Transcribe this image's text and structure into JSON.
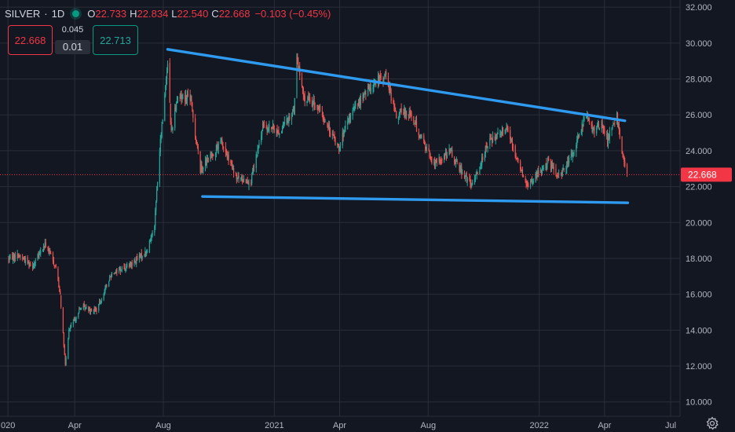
{
  "legend": {
    "symbol": "SILVER",
    "separator": "·",
    "interval": "1D",
    "open_label": "O",
    "open": "22.733",
    "high_label": "H",
    "high": "22.834",
    "low_label": "L",
    "low": "22.540",
    "close_label": "C",
    "close": "22.668",
    "change": "−0.103 (−0.45%)"
  },
  "trade": {
    "sell_price": "22.668",
    "spread_top": "0.045",
    "spread_bottom": "0.01",
    "buy_price": "22.713"
  },
  "price_badge": "22.668",
  "colors": {
    "background": "#131722",
    "grid": "#2a2e39",
    "up": "#26a69a",
    "down": "#ef5350",
    "trendline": "#2f9bf0",
    "badge": "#f23645",
    "axis_text": "#b2b5be"
  },
  "settings_icon": "gear-icon",
  "chart_data": {
    "type": "candlestick",
    "y_axis_labels": [
      "32.000",
      "30.000",
      "28.000",
      "26.000",
      "24.000",
      "22.000",
      "20.000",
      "18.000",
      "16.000",
      "14.000",
      "12.000",
      "10.000"
    ],
    "x_axis_labels": [
      "020",
      "Apr",
      "Aug",
      "2021",
      "Apr",
      "Aug",
      "2022",
      "Apr",
      "Jul"
    ],
    "ylim": [
      9.2,
      32.4
    ],
    "last_price": 22.668,
    "trendlines": [
      {
        "name": "upper",
        "from": {
          "date": "2020-08-07",
          "price": 29.65
        },
        "to": {
          "date": "2022-04-29",
          "price": 25.67
        }
      },
      {
        "name": "lower",
        "from": {
          "date": "2020-09-24",
          "price": 21.45
        },
        "to": {
          "date": "2022-05-03",
          "price": 21.1
        }
      }
    ],
    "anchors": [
      [
        "2020-01-01",
        18.0
      ],
      [
        "2020-01-14",
        18.2
      ],
      [
        "2020-02-03",
        17.6
      ],
      [
        "2020-02-21",
        18.8
      ],
      [
        "2020-03-06",
        17.5
      ],
      [
        "2020-03-12",
        16.0
      ],
      [
        "2020-03-19",
        12.0
      ],
      [
        "2020-03-24",
        14.0
      ],
      [
        "2020-04-10",
        15.3
      ],
      [
        "2020-05-01",
        15.1
      ],
      [
        "2020-05-22",
        17.2
      ],
      [
        "2020-06-15",
        17.6
      ],
      [
        "2020-07-10",
        18.4
      ],
      [
        "2020-07-20",
        20.0
      ],
      [
        "2020-07-27",
        24.0
      ],
      [
        "2020-08-07",
        29.0
      ],
      [
        "2020-08-12",
        25.0
      ],
      [
        "2020-08-20",
        27.0
      ],
      [
        "2020-09-07",
        27.0
      ],
      [
        "2020-09-21",
        23.0
      ],
      [
        "2020-10-02",
        23.5
      ],
      [
        "2020-10-20",
        24.5
      ],
      [
        "2020-11-09",
        22.5
      ],
      [
        "2020-11-30",
        22.3
      ],
      [
        "2020-12-17",
        25.5
      ],
      [
        "2021-01-08",
        25.0
      ],
      [
        "2021-01-28",
        26.3
      ],
      [
        "2021-02-01",
        29.2
      ],
      [
        "2021-02-10",
        27.0
      ],
      [
        "2021-03-01",
        26.5
      ],
      [
        "2021-03-30",
        24.2
      ],
      [
        "2021-04-20",
        26.3
      ],
      [
        "2021-05-18",
        27.8
      ],
      [
        "2021-06-04",
        28.2
      ],
      [
        "2021-06-17",
        26.0
      ],
      [
        "2021-07-06",
        26.2
      ],
      [
        "2021-08-09",
        23.2
      ],
      [
        "2021-08-30",
        24.0
      ],
      [
        "2021-09-30",
        22.0
      ],
      [
        "2021-10-22",
        24.4
      ],
      [
        "2021-11-16",
        25.4
      ],
      [
        "2021-12-15",
        22.0
      ],
      [
        "2022-01-13",
        23.4
      ],
      [
        "2022-01-27",
        22.5
      ],
      [
        "2022-02-15",
        23.7
      ],
      [
        "2022-03-08",
        26.2
      ],
      [
        "2022-03-15",
        25.0
      ],
      [
        "2022-03-28",
        25.6
      ],
      [
        "2022-04-05",
        24.6
      ],
      [
        "2022-04-18",
        25.9
      ],
      [
        "2022-04-25",
        24.0
      ],
      [
        "2022-05-02",
        22.668
      ]
    ]
  }
}
